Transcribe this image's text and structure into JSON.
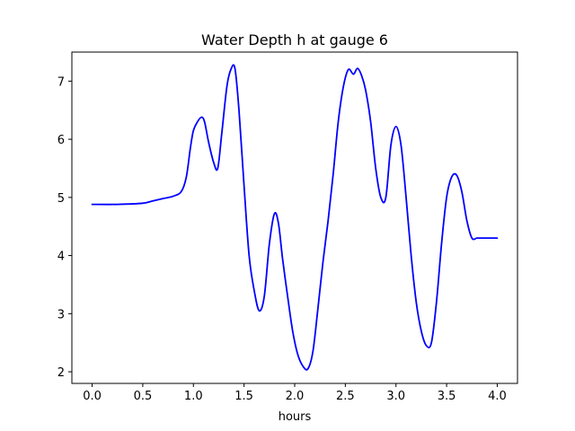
{
  "chart_data": {
    "type": "line",
    "title": "Water Depth h at gauge 6",
    "xlabel": "hours",
    "ylabel": "",
    "xlim": [
      -0.2,
      4.2
    ],
    "ylim": [
      1.8,
      7.5
    ],
    "xticks": [
      0.0,
      0.5,
      1.0,
      1.5,
      2.0,
      2.5,
      3.0,
      3.5,
      4.0
    ],
    "xtick_labels": [
      "0.0",
      "0.5",
      "1.0",
      "1.5",
      "2.0",
      "2.5",
      "3.0",
      "3.5",
      "4.0"
    ],
    "yticks": [
      2,
      3,
      4,
      5,
      6,
      7
    ],
    "ytick_labels": [
      "2",
      "3",
      "4",
      "5",
      "6",
      "7"
    ],
    "grid": false,
    "series": [
      {
        "color": "#0000ff",
        "x": [
          0.0,
          0.25,
          0.5,
          0.6,
          0.7,
          0.8,
          0.88,
          0.93,
          0.97,
          1.0,
          1.04,
          1.08,
          1.11,
          1.15,
          1.2,
          1.24,
          1.28,
          1.33,
          1.37,
          1.41,
          1.45,
          1.5,
          1.55,
          1.6,
          1.65,
          1.7,
          1.75,
          1.8,
          1.84,
          1.88,
          1.93,
          1.98,
          2.03,
          2.08,
          2.13,
          2.18,
          2.23,
          2.28,
          2.33,
          2.38,
          2.43,
          2.48,
          2.53,
          2.58,
          2.62,
          2.66,
          2.7,
          2.75,
          2.8,
          2.85,
          2.9,
          2.95,
          3.0,
          3.05,
          3.1,
          3.15,
          3.2,
          3.25,
          3.3,
          3.35,
          3.4,
          3.45,
          3.5,
          3.55,
          3.6,
          3.65,
          3.7,
          3.75,
          3.8,
          3.85,
          3.9,
          3.95,
          4.0
        ],
        "y": [
          4.88,
          4.88,
          4.9,
          4.94,
          4.98,
          5.02,
          5.1,
          5.35,
          5.85,
          6.15,
          6.3,
          6.38,
          6.3,
          5.95,
          5.6,
          5.5,
          6.1,
          6.9,
          7.2,
          7.22,
          6.5,
          5.2,
          4.0,
          3.4,
          3.05,
          3.3,
          4.2,
          4.72,
          4.55,
          3.95,
          3.3,
          2.7,
          2.3,
          2.1,
          2.05,
          2.35,
          3.1,
          3.9,
          4.6,
          5.4,
          6.3,
          6.9,
          7.2,
          7.12,
          7.22,
          7.1,
          6.85,
          6.3,
          5.5,
          5.0,
          5.0,
          5.9,
          6.22,
          5.9,
          5.0,
          4.0,
          3.2,
          2.7,
          2.45,
          2.5,
          3.2,
          4.2,
          5.0,
          5.35,
          5.38,
          5.1,
          4.6,
          4.3,
          4.3,
          4.3,
          4.3,
          4.3,
          4.3
        ]
      }
    ]
  }
}
